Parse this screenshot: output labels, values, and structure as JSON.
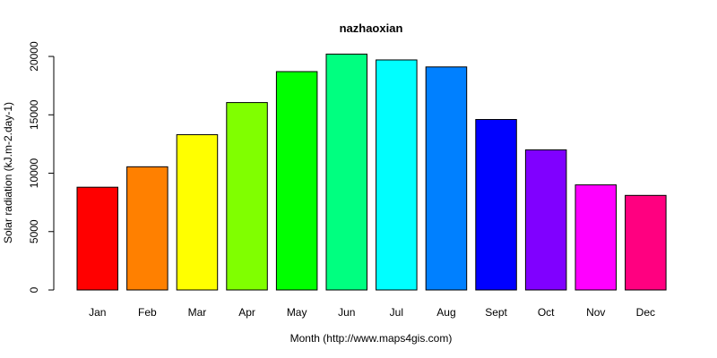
{
  "chart_data": {
    "type": "bar",
    "title": "nazhaoxian",
    "xlabel": "Month (http://www.maps4gis.com)",
    "ylabel": "Solar radiation (kJ.m-2.day-1)",
    "categories": [
      "Jan",
      "Feb",
      "Mar",
      "Apr",
      "May",
      "Jun",
      "Jul",
      "Aug",
      "Sept",
      "Oct",
      "Nov",
      "Dec"
    ],
    "values": [
      8800,
      10550,
      13300,
      16050,
      18700,
      20200,
      19700,
      19100,
      14600,
      12000,
      9000,
      8100
    ],
    "colors": [
      "#ff0000",
      "#ff8000",
      "#ffff00",
      "#80ff00",
      "#00ff00",
      "#00ff80",
      "#00ffff",
      "#0080ff",
      "#0000ff",
      "#8000ff",
      "#ff00ff",
      "#ff0080"
    ],
    "yticks": [
      0,
      5000,
      10000,
      15000,
      20000
    ],
    "ylim": [
      0,
      21000
    ],
    "grid": false,
    "legend": "none"
  }
}
